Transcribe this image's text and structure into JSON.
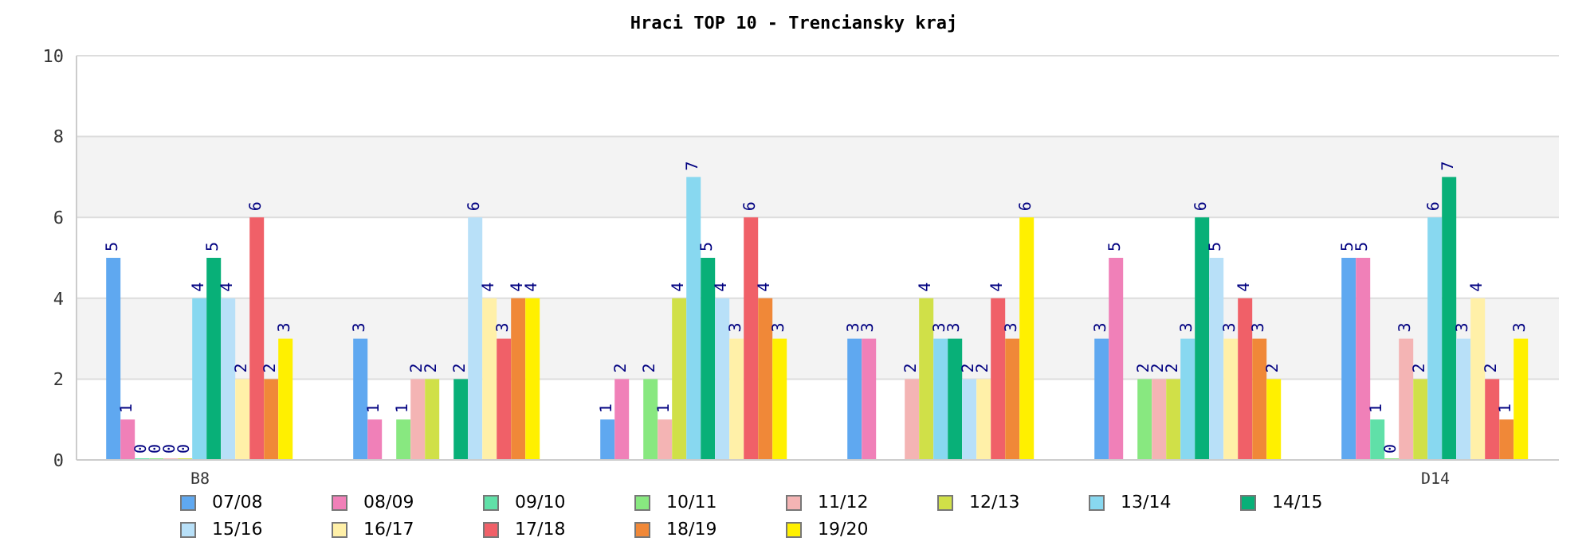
{
  "chart_data": {
    "type": "bar",
    "title": "Hraci TOP 10 - Trenciansky kraj",
    "categories": [
      "B8",
      null,
      null,
      null,
      null,
      "D14"
    ],
    "ylim": [
      0,
      10
    ],
    "yticks": [
      0,
      2,
      4,
      6,
      8,
      10
    ],
    "grid": "y",
    "legend": "bottom",
    "data_labels": true,
    "series": [
      {
        "name": "07/08",
        "color": "#5fa8f0",
        "values": [
          5,
          3,
          1,
          3,
          3,
          5
        ]
      },
      {
        "name": "08/09",
        "color": "#f080b8",
        "values": [
          1,
          1,
          2,
          3,
          5,
          5
        ]
      },
      {
        "name": "09/10",
        "color": "#60e0a8",
        "values": [
          0,
          null,
          null,
          null,
          null,
          1
        ]
      },
      {
        "name": "10/11",
        "color": "#88e880",
        "values": [
          0,
          1,
          2,
          null,
          2,
          0
        ]
      },
      {
        "name": "11/12",
        "color": "#f4b4b4",
        "values": [
          0,
          2,
          1,
          2,
          2,
          3
        ]
      },
      {
        "name": "12/13",
        "color": "#d0e048",
        "values": [
          0,
          2,
          4,
          4,
          2,
          2
        ]
      },
      {
        "name": "13/14",
        "color": "#88d8f0",
        "values": [
          4,
          null,
          7,
          3,
          3,
          6
        ]
      },
      {
        "name": "14/15",
        "color": "#08b078",
        "values": [
          5,
          2,
          5,
          3,
          6,
          7
        ]
      },
      {
        "name": "15/16",
        "color": "#b8e0f8",
        "values": [
          4,
          6,
          4,
          2,
          5,
          3
        ]
      },
      {
        "name": "16/17",
        "color": "#fff0a8",
        "values": [
          2,
          4,
          3,
          2,
          3,
          4
        ]
      },
      {
        "name": "17/18",
        "color": "#f06068",
        "values": [
          6,
          3,
          6,
          4,
          4,
          2
        ]
      },
      {
        "name": "18/19",
        "color": "#f08838",
        "values": [
          2,
          4,
          4,
          3,
          3,
          1
        ]
      },
      {
        "name": "19/20",
        "color": "#fff000",
        "values": [
          3,
          4,
          3,
          6,
          2,
          3
        ]
      }
    ]
  }
}
